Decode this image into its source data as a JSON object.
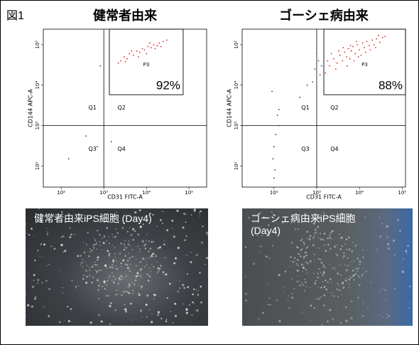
{
  "figure_label": "図1",
  "chart_data": [
    {
      "type": "scatter",
      "title": "健常者由来",
      "x_label": "CD31 FITC-A",
      "y_label": "CD144 APC-A",
      "log_x": true,
      "log_y": true,
      "xlim": [
        38,
        260000
      ],
      "ylim": [
        30,
        243000
      ],
      "xticks": [
        {
          "value": 100,
          "label": "10²"
        },
        {
          "value": 1000,
          "label": "10³"
        },
        {
          "value": 10000,
          "label": "10⁴"
        },
        {
          "value": 100000,
          "label": "10⁵"
        }
      ],
      "yticks": [
        {
          "value": 100,
          "label": "10²"
        },
        {
          "value": 1000,
          "label": "10³"
        },
        {
          "value": 10000,
          "label": "10⁴"
        },
        {
          "value": 100000,
          "label": "10⁵"
        }
      ],
      "quadrant": {
        "x": 1000,
        "y": 1000,
        "labels": [
          "Q1",
          "Q2",
          "Q3",
          "Q4"
        ]
      },
      "gate": {
        "label": "P3",
        "x": [
          1350,
          73000
        ],
        "y": [
          5800,
          243000
        ],
        "value": 92,
        "value_label": "92%"
      },
      "series": [
        {
          "color": "#e02020",
          "x": [
            2500,
            3000,
            3500,
            4000,
            5000,
            6000,
            7000,
            8000,
            9000,
            11000,
            13000,
            15000,
            18000,
            20000,
            25000,
            2200,
            4500,
            10000,
            12000,
            16000,
            30000,
            3200,
            6500,
            22000
          ],
          "y": [
            40000,
            50000,
            45000,
            60000,
            55000,
            70000,
            65000,
            80000,
            75000,
            90000,
            85000,
            100000,
            95000,
            110000,
            120000,
            35000,
            70000,
            60000,
            110000,
            80000,
            130000,
            38000,
            50000,
            90000
          ]
        },
        {
          "color": "#333333",
          "x": [
            830,
            380,
            150,
            700,
            1500
          ],
          "y": [
            30000,
            550,
            150,
            300,
            400
          ]
        }
      ]
    },
    {
      "type": "scatter",
      "title": "ゴーシェ病由来",
      "x_label": "CD31 FITC-A",
      "y_label": "CD144 APC-A",
      "log_x": true,
      "log_y": true,
      "xlim": [
        18,
        120000
      ],
      "ylim": [
        30,
        243000
      ],
      "xticks": [
        {
          "value": 100,
          "label": "10²"
        },
        {
          "value": 1000,
          "label": "10³"
        },
        {
          "value": 10000,
          "label": "10⁴"
        },
        {
          "value": 100000,
          "label": "10⁵"
        }
      ],
      "yticks": [
        {
          "value": 100,
          "label": "10²"
        },
        {
          "value": 1000,
          "label": "10³"
        },
        {
          "value": 10000,
          "label": "10⁴"
        },
        {
          "value": 100000,
          "label": "10⁵"
        }
      ],
      "quadrant": {
        "x": 1000,
        "y": 1000,
        "labels": [
          "Q1",
          "Q2",
          "Q3",
          "Q4"
        ]
      },
      "gate": {
        "label": "P3",
        "x": [
          1470,
          120000
        ],
        "y": [
          5800,
          243000
        ],
        "value": 88,
        "value_label": "88%"
      },
      "series": [
        {
          "color": "#e02020",
          "x": [
            2000,
            2500,
            3000,
            3500,
            4000,
            4500,
            5000,
            5500,
            6000,
            6500,
            7000,
            8000,
            9000,
            10000,
            11000,
            12000,
            13000,
            15000,
            17000,
            20000,
            22000,
            25000,
            30000,
            35000,
            2200,
            2800,
            3300,
            4200,
            5200,
            6200,
            7500,
            8500,
            9500,
            14000,
            18000,
            24000,
            1800,
            1600,
            40000,
            28000
          ],
          "y": [
            30000,
            45000,
            35000,
            55000,
            40000,
            65000,
            50000,
            80000,
            45000,
            70000,
            90000,
            60000,
            100000,
            75000,
            55000,
            110000,
            85000,
            120000,
            95000,
            130000,
            100000,
            140000,
            115000,
            150000,
            60000,
            25000,
            70000,
            85000,
            30000,
            95000,
            40000,
            120000,
            50000,
            65000,
            75000,
            85000,
            40000,
            20000,
            160000,
            170000
          ]
        },
        {
          "color": "#4040c0",
          "x": [
            900,
            1100,
            1200,
            1000,
            1300,
            800
          ],
          "y": [
            25000,
            40000,
            18000,
            60000,
            30000,
            12000
          ]
        },
        {
          "color": "#333333",
          "x": [
            120,
            110,
            100,
            95,
            105,
            100,
            130,
            90,
            600,
            400,
            130
          ],
          "y": [
            1800,
            600,
            300,
            150,
            80,
            50,
            1000,
            7000,
            10000,
            5000,
            2500
          ]
        }
      ]
    }
  ],
  "photos": [
    {
      "caption": "健常者由来iPS細胞 (Day4)"
    },
    {
      "caption": "ゴーシェ病由来iPS細胞 (Day4)"
    }
  ]
}
